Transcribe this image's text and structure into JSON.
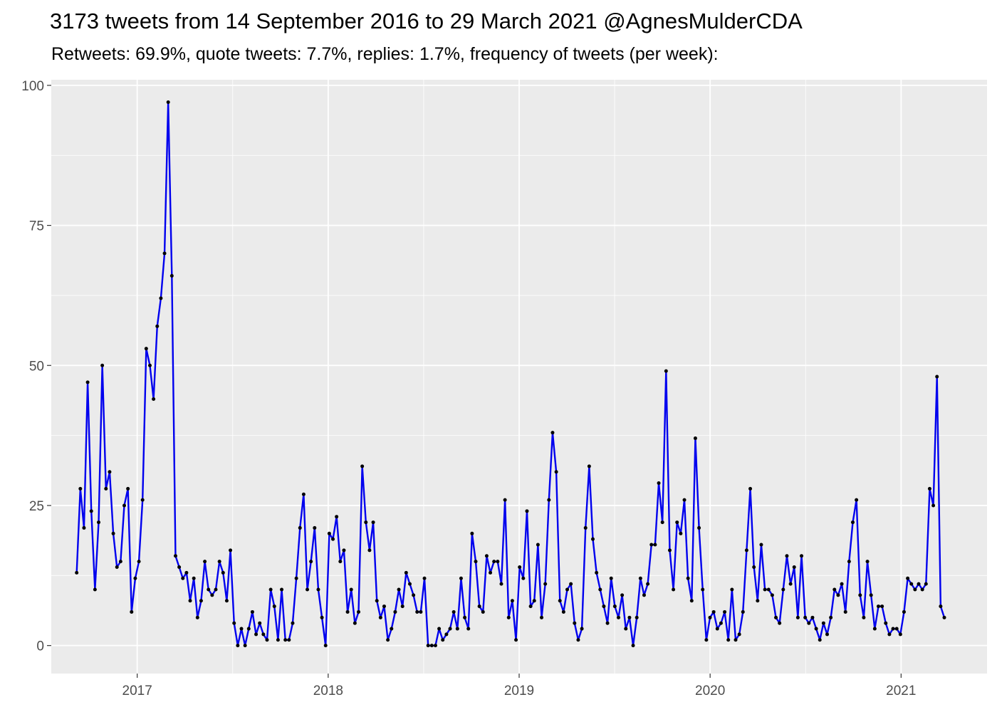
{
  "title": "3173 tweets from 14 September 2016 to 29 March 2021 @AgnesMulderCDA",
  "subtitle": "Retweets: 69.9%, quote tweets: 7.7%, replies: 1.7%, frequency of tweets (per week):",
  "colors": {
    "panel": "#ebebeb",
    "grid": "#ffffff",
    "line": "#0000ee",
    "point": "#000000"
  },
  "chart_data": {
    "type": "line",
    "title": "3173 tweets from 14 September 2016 to 29 March 2021 @AgnesMulderCDA",
    "subtitle": "Retweets: 69.9%, quote tweets: 7.7%, replies: 1.7%, frequency of tweets (per week):",
    "xlabel": "",
    "ylabel": "",
    "x_start_year": 2016.683,
    "x_step_years": 0.01917,
    "xlim": [
      2016.55,
      2021.45
    ],
    "ylim": [
      -5,
      101
    ],
    "y_ticks": [
      0,
      25,
      50,
      75,
      100
    ],
    "x_ticks": [
      2017,
      2018,
      2019,
      2020,
      2021
    ],
    "x_tick_labels": [
      "2017",
      "2018",
      "2019",
      "2020",
      "2021"
    ],
    "grid": true,
    "legend": "none",
    "series": [
      {
        "values": [
          13,
          28,
          21,
          47,
          24,
          10,
          22,
          50,
          28,
          31,
          20,
          14,
          15,
          25,
          28,
          6,
          12,
          15,
          26,
          53,
          50,
          44,
          57,
          62,
          70,
          97,
          66,
          16,
          14,
          12,
          13,
          8,
          12,
          5,
          8,
          15,
          10,
          9,
          10,
          15,
          13,
          8,
          17,
          4,
          0,
          3,
          0,
          3,
          6,
          2,
          4,
          2,
          1,
          10,
          7,
          1,
          10,
          1,
          1,
          4,
          12,
          21,
          27,
          10,
          15,
          21,
          10,
          5,
          0,
          20,
          19,
          23,
          15,
          17,
          6,
          10,
          4,
          6,
          32,
          22,
          17,
          22,
          8,
          5,
          7,
          1,
          3,
          6,
          10,
          7,
          13,
          11,
          9,
          6,
          6,
          12,
          0,
          0,
          0,
          3,
          1,
          2,
          3,
          6,
          3,
          12,
          5,
          3,
          20,
          15,
          7,
          6,
          16,
          13,
          15,
          15,
          11,
          26,
          5,
          8,
          1,
          14,
          12,
          24,
          7,
          8,
          18,
          5,
          11,
          26,
          38,
          31,
          8,
          6,
          10,
          11,
          4,
          1,
          3,
          21,
          32,
          19,
          13,
          10,
          7,
          4,
          12,
          7,
          5,
          9,
          3,
          5,
          0,
          5,
          12,
          9,
          11,
          18,
          18,
          29,
          22,
          49,
          17,
          10,
          22,
          20,
          26,
          12,
          8,
          37,
          21,
          10,
          1,
          5,
          6,
          3,
          4,
          6,
          1,
          10,
          1,
          2,
          6,
          17,
          28,
          14,
          8,
          18,
          10,
          10,
          9,
          5,
          4,
          10,
          16,
          11,
          14,
          5,
          16,
          5,
          4,
          5,
          3,
          1,
          4,
          2,
          5,
          10,
          9,
          11,
          6,
          15,
          22,
          26,
          9,
          5,
          15,
          9,
          3,
          7,
          7,
          4,
          2,
          3,
          3,
          2,
          6,
          12,
          11,
          10,
          11,
          10,
          11,
          28,
          25,
          48,
          7,
          5
        ]
      }
    ]
  }
}
